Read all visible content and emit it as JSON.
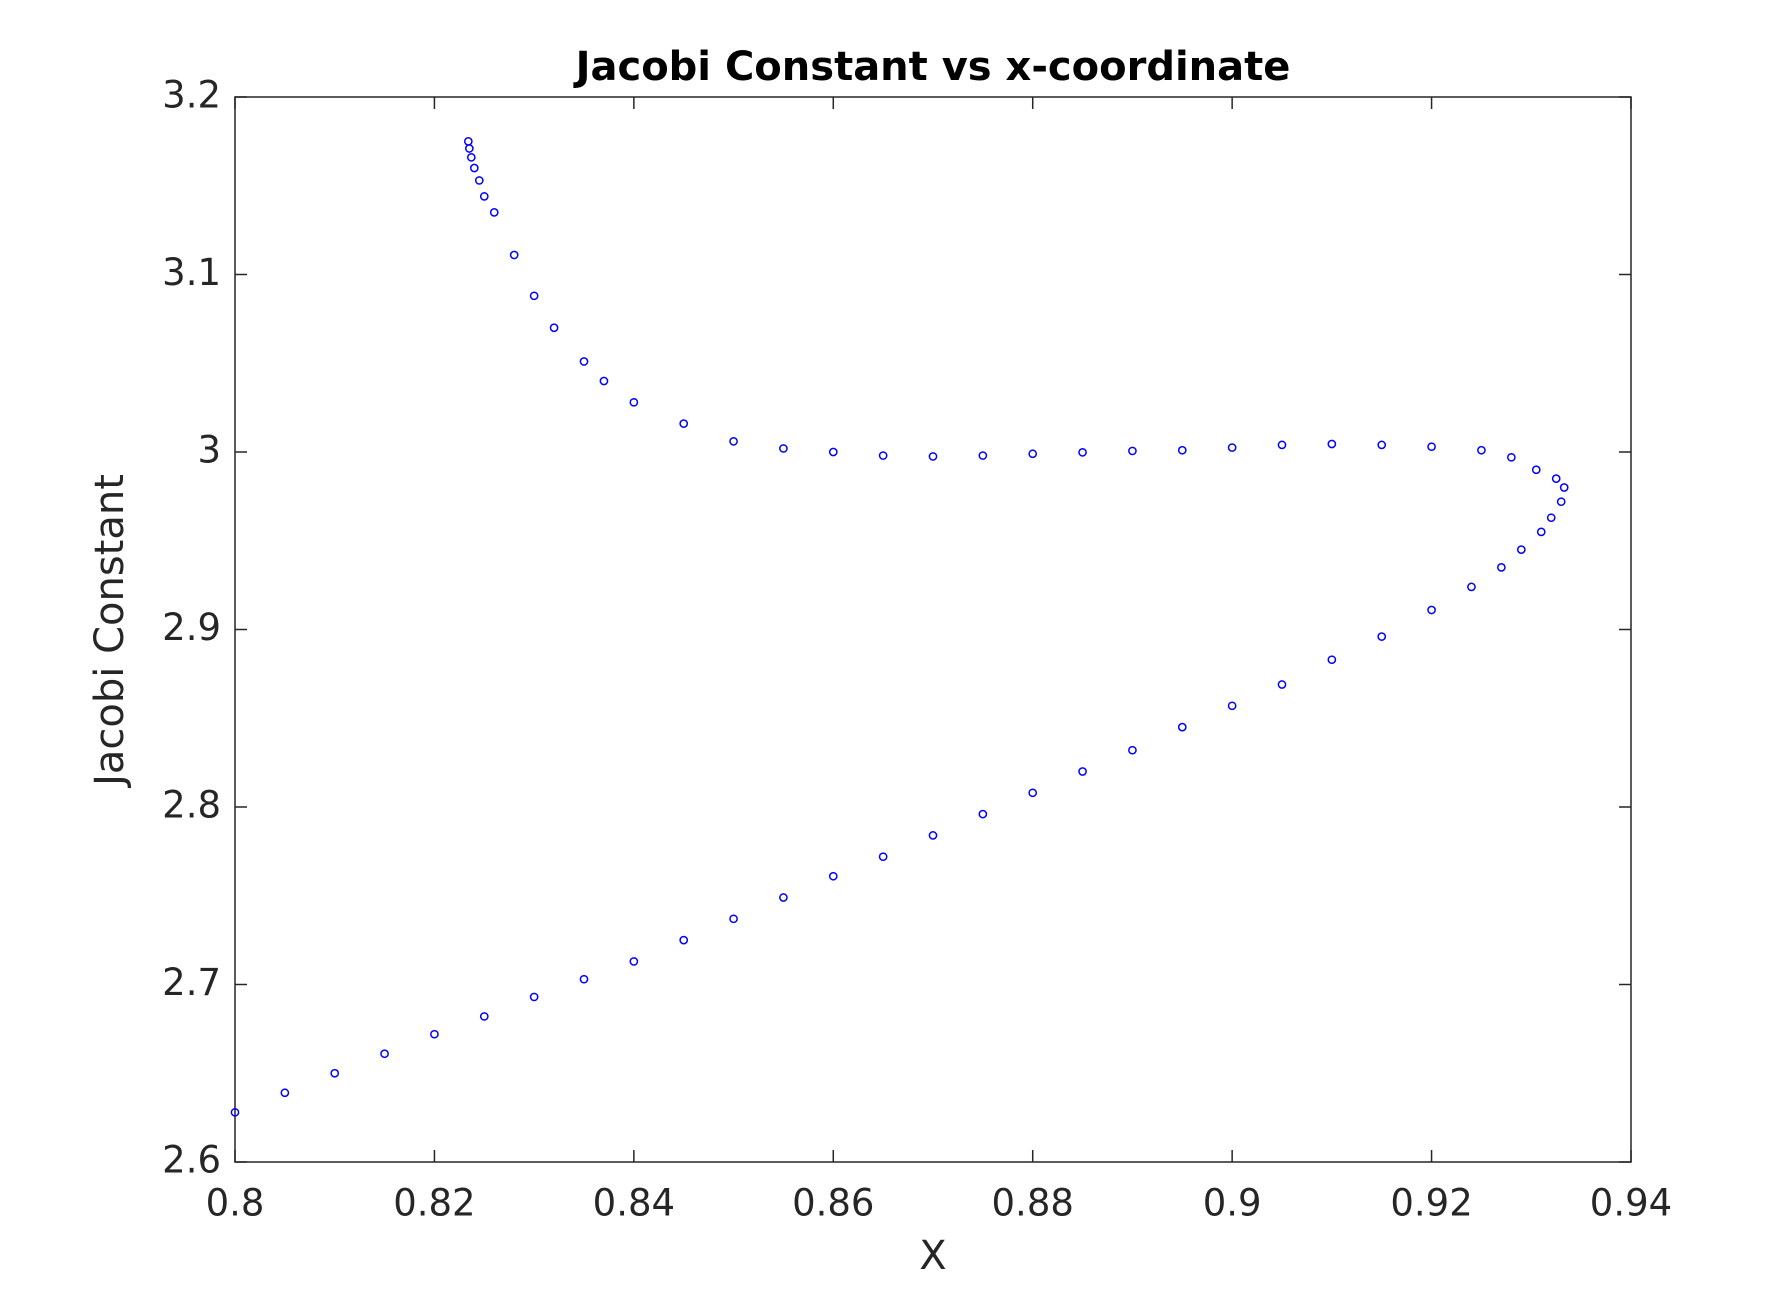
{
  "chart_data": {
    "type": "scatter",
    "title": "Jacobi Constant vs x-coordinate",
    "x_label": "X",
    "y_label": "Jacobi Constant",
    "xlim": [
      0.8,
      0.94
    ],
    "xticks": [
      0.8,
      0.82,
      0.84,
      0.86,
      0.88,
      0.9,
      0.92,
      0.94
    ],
    "ylim": [
      2.6,
      3.2
    ],
    "yticks": [
      2.6,
      2.7,
      2.8,
      2.9,
      3,
      3.1,
      3.2
    ],
    "series": [
      {
        "color": "#0000ff",
        "x": [
          0.8,
          0.805,
          0.81,
          0.815,
          0.82,
          0.825,
          0.83,
          0.835,
          0.84,
          0.845,
          0.85,
          0.855,
          0.86,
          0.865,
          0.87,
          0.875,
          0.88,
          0.885,
          0.89,
          0.895,
          0.9,
          0.905,
          0.91,
          0.915,
          0.92,
          0.924,
          0.927,
          0.929,
          0.931,
          0.932,
          0.933,
          0.9333,
          0.9325,
          0.9305,
          0.928,
          0.925,
          0.92,
          0.915,
          0.91,
          0.905,
          0.9,
          0.895,
          0.89,
          0.885,
          0.88,
          0.875,
          0.87,
          0.865,
          0.86,
          0.855,
          0.85,
          0.845,
          0.84,
          0.837,
          0.835,
          0.832,
          0.83,
          0.828,
          0.826,
          0.825,
          0.8245,
          0.824,
          0.8237,
          0.8235,
          0.8234
        ],
        "y": [
          2.628,
          2.639,
          2.65,
          2.661,
          2.672,
          2.682,
          2.693,
          2.703,
          2.713,
          2.725,
          2.737,
          2.749,
          2.761,
          2.772,
          2.784,
          2.796,
          2.808,
          2.82,
          2.832,
          2.845,
          2.857,
          2.869,
          2.883,
          2.896,
          2.911,
          2.924,
          2.935,
          2.945,
          2.955,
          2.963,
          2.972,
          2.98,
          2.985,
          2.99,
          2.997,
          3.001,
          3.003,
          3.004,
          3.0045,
          3.004,
          3.0025,
          3.001,
          3.0006,
          2.9998,
          2.999,
          2.998,
          2.9975,
          2.998,
          3.0,
          3.002,
          3.006,
          3.016,
          3.028,
          3.04,
          3.051,
          3.07,
          3.088,
          3.111,
          3.135,
          3.144,
          3.153,
          3.16,
          3.166,
          3.171,
          3.175
        ]
      }
    ]
  }
}
